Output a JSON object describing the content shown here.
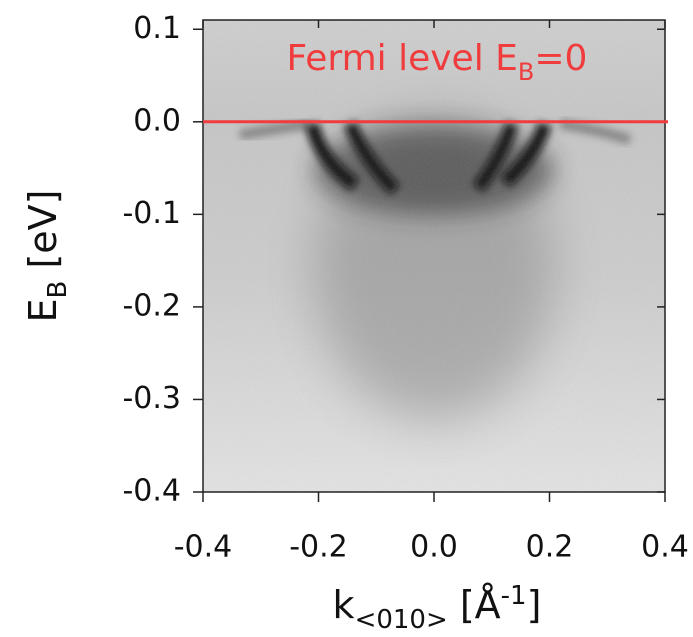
{
  "chart_data": {
    "type": "heatmap",
    "xlabel": [
      "k",
      "<010>",
      " [Å",
      "-1",
      "]"
    ],
    "ylabel": [
      "E",
      "B",
      " [eV]"
    ],
    "xlim": [
      -0.4,
      0.4
    ],
    "ylim": [
      -0.4,
      0.11
    ],
    "xticks": [
      -0.4,
      -0.2,
      {
        "value": 0,
        "label": "0.0"
      },
      0.2,
      0.4
    ],
    "yticks": [
      0.1,
      {
        "value": 0,
        "label": "0.0"
      },
      -0.1,
      -0.2,
      -0.3,
      -0.4
    ],
    "annotation": {
      "text": [
        "Fermi level E",
        "B",
        "=0"
      ],
      "y": 0,
      "color": "#f03c3c"
    }
  }
}
